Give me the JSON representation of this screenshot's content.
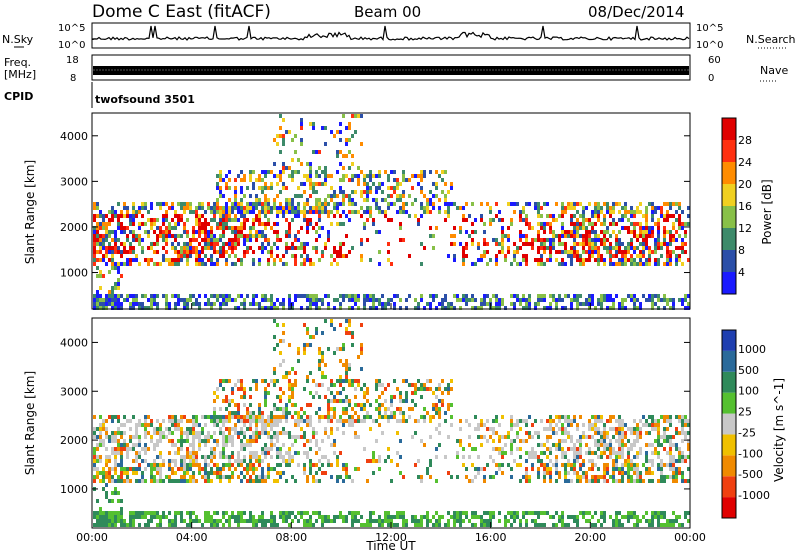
{
  "header": {
    "title": "Dome C East (fitACF)",
    "beam": "Beam 00",
    "date": "08/Dec/2014"
  },
  "top_panels": {
    "nsky_label": "N.Sky",
    "nsky_ticks": [
      "10^5",
      "10^0"
    ],
    "nsearch_label": "N.Search",
    "nsearch_ticks": [
      "10^5",
      "10^0"
    ],
    "freq_label": "Freq.",
    "freq_unit": "[MHz]",
    "freq_ticks": [
      "18",
      "8"
    ],
    "nave_label": "Nave",
    "nave_ticks": [
      "60",
      "0"
    ],
    "cpid_label": "CPID",
    "cpid_value": "twofsound 3501"
  },
  "chart_data": [
    {
      "type": "heatmap",
      "ylabel": "Slant Range [km]",
      "y_ticks": [
        "1000",
        "2000",
        "3000",
        "4000"
      ],
      "ylim": [
        200,
        4500
      ],
      "colorbar_label": "Power [dB]",
      "colorbar_ticks": [
        "4",
        "8",
        "12",
        "16",
        "20",
        "24",
        "28"
      ],
      "colors": [
        "#1a1aff",
        "#2b4fa8",
        "#3d8a6a",
        "#88c048",
        "#f0d020",
        "#ff8c00",
        "#ff3010",
        "#e00000"
      ],
      "x_ticks": [
        "00:00",
        "04:00",
        "08:00",
        "12:00",
        "16:00",
        "20:00",
        "00:00"
      ]
    },
    {
      "type": "heatmap",
      "ylabel": "Slant Range [km]",
      "y_ticks": [
        "1000",
        "2000",
        "3000",
        "4000"
      ],
      "ylim": [
        200,
        4500
      ],
      "colorbar_label": "Velocity [m s^-1]",
      "colorbar_ticks": [
        "1000",
        "500",
        "100",
        "25",
        "-25",
        "-100",
        "-500",
        "-1000"
      ],
      "colors": [
        "#1f3fb0",
        "#2a6a9a",
        "#2f8a5a",
        "#55c030",
        "#c8c8c8",
        "#f0c000",
        "#f08a00",
        "#f04010",
        "#e00000"
      ],
      "x_ticks": [
        "00:00",
        "04:00",
        "08:00",
        "12:00",
        "16:00",
        "20:00",
        "00:00"
      ],
      "xlabel": "Time UT"
    }
  ]
}
